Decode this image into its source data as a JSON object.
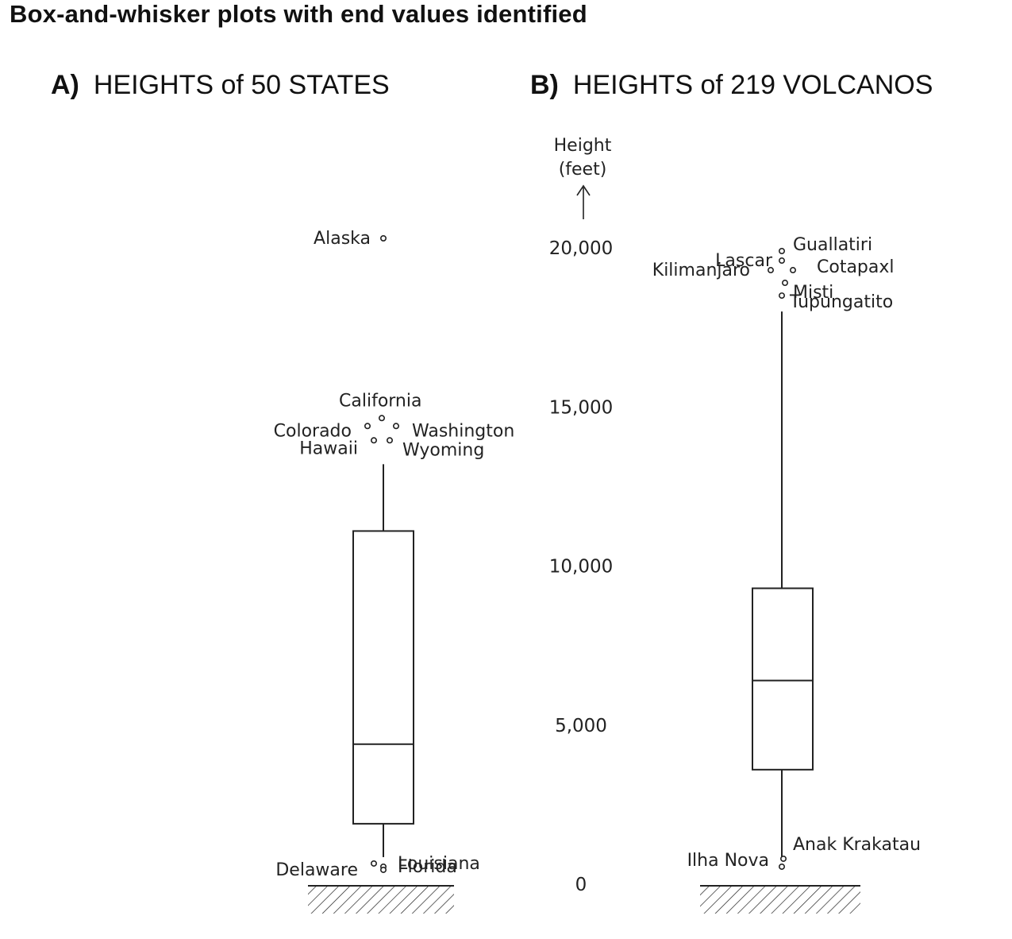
{
  "title": "Box-and-whisker plots with end values identified",
  "chart_data": [
    {
      "type": "box",
      "panel_letter": "A)",
      "title": "HEIGHTS of 50 STATES",
      "ylim": [
        0,
        20000
      ],
      "box": {
        "lower_hinge": 1900,
        "median": 4400,
        "upper_hinge": 11100
      },
      "whiskers": {
        "low": 850,
        "high": 13200
      },
      "points": [
        {
          "label": "Alaska",
          "value": 20300
        },
        {
          "label": "California",
          "value": 14500
        },
        {
          "label": "Colorado",
          "value": 14400
        },
        {
          "label": "Washington",
          "value": 14400
        },
        {
          "label": "Hawaii",
          "value": 13800
        },
        {
          "label": "Wyoming",
          "value": 13800
        },
        {
          "label": "Louisiana",
          "value": 550
        },
        {
          "label": "Delaware",
          "value": 450
        },
        {
          "label": "Florida",
          "value": 350
        }
      ]
    },
    {
      "type": "box",
      "panel_letter": "B)",
      "title": "HEIGHTS of 219 VOLCANOS",
      "ylabel": "Height (feet)",
      "yticks": [
        "0",
        "5,000",
        "10,000",
        "15,000",
        "20,000"
      ],
      "ylim": [
        0,
        20000
      ],
      "box": {
        "lower_hinge": 3600,
        "median": 6400,
        "upper_hinge": 9300
      },
      "whiskers": {
        "low": 800,
        "high": 18000
      },
      "points": [
        {
          "label": "Guallatiri",
          "value": 19900
        },
        {
          "label": "Lascar",
          "value": 19600
        },
        {
          "label": "Kilimanjaro",
          "value": 19300
        },
        {
          "label": "Cotapaxl",
          "value": 19300
        },
        {
          "label": "Misti",
          "value": 18900
        },
        {
          "label": "Tupungatito",
          "value": 18500
        },
        {
          "label": "Anak Krakatau",
          "value": 600
        },
        {
          "label": "Ilha Nova",
          "value": 350
        }
      ]
    }
  ]
}
